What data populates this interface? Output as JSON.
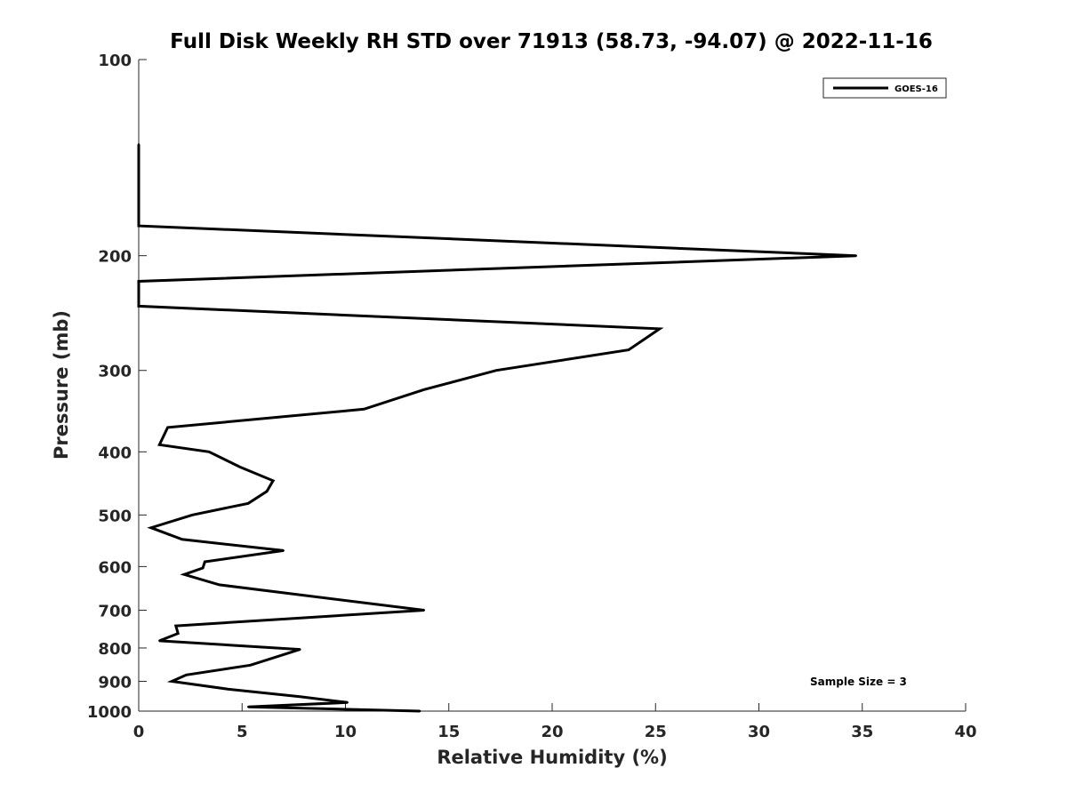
{
  "chart_data": {
    "type": "line",
    "title": "Full Disk Weekly RH STD over 71913 (58.73, -94.07) @ 2022-11-16",
    "xlabel": "Relative Humidity (%)",
    "ylabel": "Pressure (mb)",
    "xlim": [
      0,
      40
    ],
    "ylim": [
      100,
      1000
    ],
    "y_scale": "log",
    "y_reversed": true,
    "grid": false,
    "legend_position": "top-right",
    "x_ticks": [
      "0",
      "5",
      "10",
      "15",
      "20",
      "25",
      "30",
      "35",
      "40"
    ],
    "y_ticks": [
      "100",
      "200",
      "300",
      "400",
      "500",
      "600",
      "700",
      "800",
      "900",
      "1000"
    ],
    "annotation": "Sample Size = 3",
    "series": [
      {
        "name": "GOES-16",
        "color": "#000000",
        "points": [
          {
            "x": 0,
            "y": 135
          },
          {
            "x": 0,
            "y": 155
          },
          {
            "x": 0,
            "y": 180
          },
          {
            "x": 34.7,
            "y": 200
          },
          {
            "x": 0,
            "y": 219
          },
          {
            "x": 0,
            "y": 239
          },
          {
            "x": 25.2,
            "y": 259
          },
          {
            "x": 23.7,
            "y": 279
          },
          {
            "x": 17.3,
            "y": 300
          },
          {
            "x": 13.8,
            "y": 321
          },
          {
            "x": 10.9,
            "y": 344
          },
          {
            "x": 1.4,
            "y": 367
          },
          {
            "x": 1.0,
            "y": 390
          },
          {
            "x": 3.4,
            "y": 400
          },
          {
            "x": 4.9,
            "y": 422
          },
          {
            "x": 6.5,
            "y": 443
          },
          {
            "x": 6.2,
            "y": 460
          },
          {
            "x": 5.3,
            "y": 480
          },
          {
            "x": 2.6,
            "y": 500
          },
          {
            "x": 0.6,
            "y": 523
          },
          {
            "x": 2.1,
            "y": 545
          },
          {
            "x": 7.0,
            "y": 567
          },
          {
            "x": 3.2,
            "y": 590
          },
          {
            "x": 3.1,
            "y": 603
          },
          {
            "x": 2.2,
            "y": 617
          },
          {
            "x": 3.9,
            "y": 640
          },
          {
            "x": 13.8,
            "y": 700
          },
          {
            "x": 1.8,
            "y": 740
          },
          {
            "x": 1.9,
            "y": 760
          },
          {
            "x": 1.0,
            "y": 780
          },
          {
            "x": 7.8,
            "y": 804
          },
          {
            "x": 5.4,
            "y": 850
          },
          {
            "x": 2.3,
            "y": 880
          },
          {
            "x": 1.6,
            "y": 900
          },
          {
            "x": 4.3,
            "y": 925
          },
          {
            "x": 7.8,
            "y": 950
          },
          {
            "x": 10.1,
            "y": 970
          },
          {
            "x": 5.3,
            "y": 985
          },
          {
            "x": 13.6,
            "y": 1000
          }
        ]
      }
    ]
  }
}
